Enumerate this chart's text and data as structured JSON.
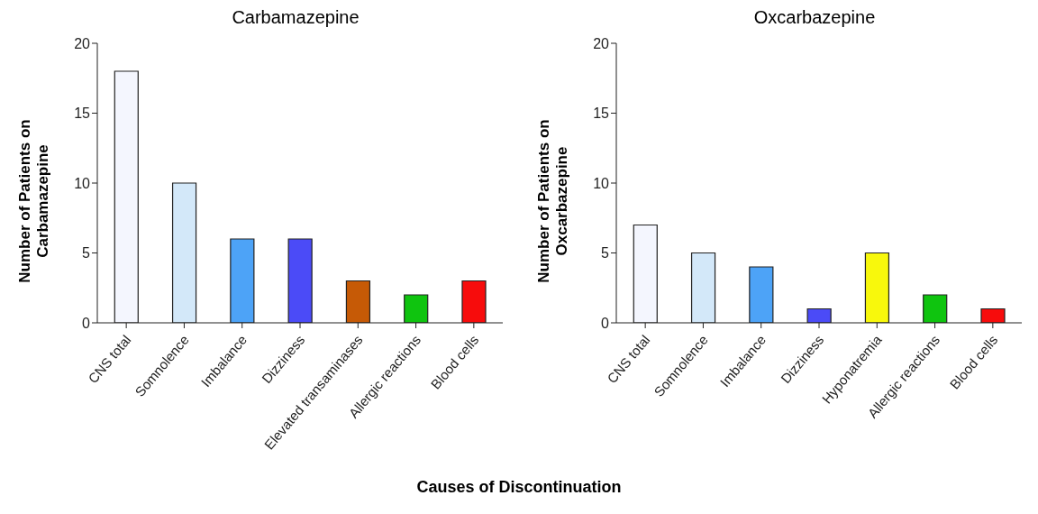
{
  "chart_data": [
    {
      "type": "bar",
      "title": "Carbamazepine",
      "ylabel": "Number of Patients on Carbamazepine",
      "xlabel": "Causes of Discontinuation",
      "categories": [
        "CNS total",
        "Somnolence",
        "Imbalance",
        "Dizziness",
        "Elevated transaminases",
        "Allergic reactions",
        "Blood cells"
      ],
      "values": [
        18,
        10,
        6,
        6,
        3,
        2,
        3
      ],
      "colors": [
        "#f4f6fe",
        "#d3e8f9",
        "#4da3f7",
        "#4b4bf7",
        "#c65a06",
        "#0fc40f",
        "#f70c0c"
      ],
      "ylim": [
        0,
        20
      ],
      "yticks": [
        0,
        5,
        10,
        15,
        20
      ],
      "grid": false,
      "legend": false
    },
    {
      "type": "bar",
      "title": "Oxcarbazepine",
      "ylabel": "Number of Patients on Oxcarbazepine",
      "categories": [
        "CNS total",
        "Somnolence",
        "Imbalance",
        "Dizziness",
        "Hyponatremia",
        "Allergic reactions",
        "Blood cells"
      ],
      "values": [
        7,
        5,
        4,
        1,
        5,
        2,
        1
      ],
      "colors": [
        "#f4f6fe",
        "#d3e8f9",
        "#4da3f7",
        "#4b4bf7",
        "#f8f80c",
        "#0fc40f",
        "#f70c0c"
      ],
      "ylim": [
        0,
        20
      ],
      "yticks": [
        0,
        5,
        10,
        15,
        20
      ],
      "grid": false,
      "legend": false
    }
  ]
}
